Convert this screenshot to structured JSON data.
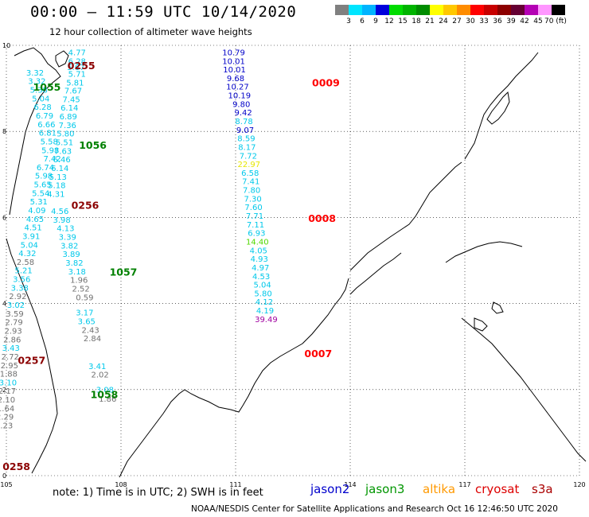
{
  "header": {
    "title": "00:00 – 11:59 UTC 10/14/2020",
    "subtitle": "12 hour collection of altimeter wave heights"
  },
  "colorbar": {
    "labels": [
      "3",
      "6",
      "9",
      "12",
      "15",
      "18",
      "21",
      "24",
      "27",
      "30",
      "33",
      "36",
      "39",
      "42",
      "45",
      "70 (ft)"
    ],
    "colors": [
      "#808080",
      "#00e5ff",
      "#00b4ff",
      "#0000dc",
      "#00dc00",
      "#00b400",
      "#008c00",
      "#ffff00",
      "#ffc800",
      "#ff8c00",
      "#ff0000",
      "#c80000",
      "#8c0000",
      "#660033",
      "#b400b4",
      "#ff96ff",
      "#000000"
    ]
  },
  "legend": {
    "note": "note:  1) Time is in UTC;  2) SWH is in feet",
    "satellites": [
      {
        "name": "jason2",
        "color": "#0000cc"
      },
      {
        "name": "jason3",
        "color": "#009600"
      },
      {
        "name": "altika",
        "color": "#ff9900"
      },
      {
        "name": "cryosat",
        "color": "#dd0000"
      },
      {
        "name": "s3a",
        "color": "#aa0000"
      }
    ]
  },
  "footer": {
    "credit": "NOAA/NESDIS Center for Satellite Applications and Research    Oct 16 12:46:50 UTC 2020"
  },
  "chart_data": {
    "type": "scatter",
    "xlim": [
      105,
      120
    ],
    "ylim": [
      0,
      10
    ],
    "grid": true,
    "x_ticks": [
      "105",
      "108",
      "111",
      "114",
      "117",
      "120"
    ],
    "y_ticks": [
      "0",
      "2",
      "4",
      "6",
      "8",
      "10"
    ],
    "swh_colors": {
      "gray": "#707070",
      "cyan": "#00c8ea",
      "blue": "#0000c8",
      "lgreen": "#50d800",
      "yellow": "#e6e600",
      "purple": "#a000a0"
    },
    "time_labels": [
      {
        "x": 106.6,
        "y": 9.45,
        "text": "0255",
        "color": "#8b0000"
      },
      {
        "x": 105.7,
        "y": 8.95,
        "text": "1055",
        "color": "#008000"
      },
      {
        "x": 113.0,
        "y": 9.05,
        "text": "0009",
        "color": "#ff0000"
      },
      {
        "x": 106.9,
        "y": 7.6,
        "text": "1056",
        "color": "#008000"
      },
      {
        "x": 106.7,
        "y": 6.2,
        "text": "0256",
        "color": "#8b0000"
      },
      {
        "x": 112.9,
        "y": 5.9,
        "text": "0008",
        "color": "#ff0000"
      },
      {
        "x": 107.7,
        "y": 4.65,
        "text": "1057",
        "color": "#008000"
      },
      {
        "x": 105.3,
        "y": 2.6,
        "text": "0257",
        "color": "#8b0000"
      },
      {
        "x": 112.8,
        "y": 2.75,
        "text": "0007",
        "color": "#ff0000"
      },
      {
        "x": 107.2,
        "y": 1.8,
        "text": "1058",
        "color": "#008000"
      },
      {
        "x": 104.9,
        "y": 0.13,
        "text": "0258",
        "color": "#8b0000"
      }
    ],
    "series": [
      {
        "track": "descending",
        "points": [
          {
            "x": 106.85,
            "y": 9.77,
            "v": "4.77",
            "c": "cyan"
          },
          {
            "x": 106.85,
            "y": 9.57,
            "v": "6.28",
            "c": "cyan"
          },
          {
            "x": 106.82,
            "y": 9.43,
            "v": "5.67",
            "c": "cyan"
          },
          {
            "x": 106.85,
            "y": 9.27,
            "v": "5.71",
            "c": "cyan"
          },
          {
            "x": 106.8,
            "y": 9.07,
            "v": "5.81",
            "c": "cyan"
          },
          {
            "x": 106.75,
            "y": 8.88,
            "v": "7.67",
            "c": "cyan"
          },
          {
            "x": 106.7,
            "y": 8.68,
            "v": "7.45",
            "c": "cyan"
          },
          {
            "x": 106.65,
            "y": 8.48,
            "v": "6.14",
            "c": "cyan"
          },
          {
            "x": 106.62,
            "y": 8.28,
            "v": "6.89",
            "c": "cyan"
          },
          {
            "x": 106.6,
            "y": 8.08,
            "v": "7.36",
            "c": "cyan"
          },
          {
            "x": 106.55,
            "y": 7.88,
            "v": "5.80",
            "c": "cyan"
          },
          {
            "x": 106.52,
            "y": 7.68,
            "v": "5.51",
            "c": "cyan"
          },
          {
            "x": 106.48,
            "y": 7.48,
            "v": "7.63",
            "c": "cyan"
          },
          {
            "x": 106.45,
            "y": 7.28,
            "v": "6.46",
            "c": "cyan"
          },
          {
            "x": 106.4,
            "y": 7.08,
            "v": "6.14",
            "c": "cyan"
          },
          {
            "x": 106.35,
            "y": 6.88,
            "v": "5.13",
            "c": "cyan"
          },
          {
            "x": 106.32,
            "y": 6.68,
            "v": "5.18",
            "c": "cyan"
          },
          {
            "x": 106.3,
            "y": 6.48,
            "v": "4.31",
            "c": "cyan"
          },
          {
            "x": 106.4,
            "y": 6.08,
            "v": "4.56",
            "c": "cyan"
          },
          {
            "x": 106.45,
            "y": 5.88,
            "v": "3.98",
            "c": "cyan"
          },
          {
            "x": 106.55,
            "y": 5.68,
            "v": "4.13",
            "c": "cyan"
          },
          {
            "x": 106.6,
            "y": 5.48,
            "v": "3.39",
            "c": "cyan"
          },
          {
            "x": 106.65,
            "y": 5.28,
            "v": "3.82",
            "c": "cyan"
          },
          {
            "x": 106.7,
            "y": 5.08,
            "v": "3.89",
            "c": "cyan"
          },
          {
            "x": 106.78,
            "y": 4.88,
            "v": "3.82",
            "c": "cyan"
          },
          {
            "x": 106.85,
            "y": 4.68,
            "v": "3.18",
            "c": "cyan"
          },
          {
            "x": 106.9,
            "y": 4.48,
            "v": "1.96",
            "c": "gray"
          },
          {
            "x": 106.95,
            "y": 4.28,
            "v": "2.52",
            "c": "gray"
          },
          {
            "x": 107.05,
            "y": 4.08,
            "v": "0.59",
            "c": "gray"
          },
          {
            "x": 107.05,
            "y": 3.72,
            "v": "3.17",
            "c": "cyan"
          },
          {
            "x": 107.1,
            "y": 3.52,
            "v": "3.65",
            "c": "cyan"
          },
          {
            "x": 107.2,
            "y": 3.32,
            "v": "2.43",
            "c": "gray"
          },
          {
            "x": 107.25,
            "y": 3.12,
            "v": "2.84",
            "c": "gray"
          },
          {
            "x": 107.38,
            "y": 2.48,
            "v": "3.41",
            "c": "cyan"
          },
          {
            "x": 107.45,
            "y": 2.28,
            "v": "2.02",
            "c": "gray"
          },
          {
            "x": 107.58,
            "y": 1.93,
            "v": "3.08",
            "c": "cyan"
          },
          {
            "x": 107.65,
            "y": 1.72,
            "v": "1.86",
            "c": "gray"
          }
        ]
      },
      {
        "track": "ascending",
        "points": [
          {
            "x": 105.75,
            "y": 9.3,
            "v": "3.32",
            "c": "cyan"
          },
          {
            "x": 105.8,
            "y": 9.1,
            "v": "3.32",
            "c": "cyan"
          },
          {
            "x": 105.85,
            "y": 8.9,
            "v": "5.38",
            "c": "cyan"
          },
          {
            "x": 105.9,
            "y": 8.7,
            "v": "5.04",
            "c": "cyan"
          },
          {
            "x": 105.95,
            "y": 8.5,
            "v": "6.28",
            "c": "cyan"
          },
          {
            "x": 106.0,
            "y": 8.3,
            "v": "6.79",
            "c": "cyan"
          },
          {
            "x": 106.05,
            "y": 8.1,
            "v": "6.66",
            "c": "cyan"
          },
          {
            "x": 106.08,
            "y": 7.9,
            "v": "6.81",
            "c": "cyan"
          },
          {
            "x": 106.12,
            "y": 7.7,
            "v": "5.58",
            "c": "cyan"
          },
          {
            "x": 106.15,
            "y": 7.5,
            "v": "5.98",
            "c": "cyan"
          },
          {
            "x": 106.2,
            "y": 7.3,
            "v": "7.42",
            "c": "cyan"
          },
          {
            "x": 106.02,
            "y": 7.1,
            "v": "6.74",
            "c": "cyan"
          },
          {
            "x": 105.98,
            "y": 6.9,
            "v": "5.98",
            "c": "cyan"
          },
          {
            "x": 105.95,
            "y": 6.7,
            "v": "5.65",
            "c": "cyan"
          },
          {
            "x": 105.9,
            "y": 6.5,
            "v": "5.54",
            "c": "cyan"
          },
          {
            "x": 105.85,
            "y": 6.3,
            "v": "5.31",
            "c": "cyan"
          },
          {
            "x": 105.8,
            "y": 6.1,
            "v": "4.09",
            "c": "cyan"
          },
          {
            "x": 105.75,
            "y": 5.9,
            "v": "4.65",
            "c": "cyan"
          },
          {
            "x": 105.7,
            "y": 5.7,
            "v": "4.51",
            "c": "cyan"
          },
          {
            "x": 105.65,
            "y": 5.5,
            "v": "3.91",
            "c": "cyan"
          },
          {
            "x": 105.6,
            "y": 5.3,
            "v": "5.04",
            "c": "cyan"
          },
          {
            "x": 105.55,
            "y": 5.1,
            "v": "4.32",
            "c": "cyan"
          },
          {
            "x": 105.5,
            "y": 4.9,
            "v": "2.58",
            "c": "gray"
          },
          {
            "x": 105.45,
            "y": 4.7,
            "v": "5.21",
            "c": "cyan"
          },
          {
            "x": 105.4,
            "y": 4.5,
            "v": "3.56",
            "c": "cyan"
          },
          {
            "x": 105.35,
            "y": 4.3,
            "v": "3.38",
            "c": "cyan"
          },
          {
            "x": 105.3,
            "y": 4.1,
            "v": "2.92",
            "c": "gray"
          },
          {
            "x": 105.25,
            "y": 3.9,
            "v": "3.02",
            "c": "cyan"
          },
          {
            "x": 105.22,
            "y": 3.7,
            "v": "3.59",
            "c": "gray"
          },
          {
            "x": 105.2,
            "y": 3.5,
            "v": "2.79",
            "c": "gray"
          },
          {
            "x": 105.18,
            "y": 3.3,
            "v": "2.93",
            "c": "gray"
          },
          {
            "x": 105.15,
            "y": 3.1,
            "v": "2.86",
            "c": "gray"
          },
          {
            "x": 105.12,
            "y": 2.9,
            "v": "3.43",
            "c": "cyan"
          },
          {
            "x": 105.1,
            "y": 2.7,
            "v": "2.72",
            "c": "gray"
          },
          {
            "x": 105.08,
            "y": 2.5,
            "v": "2.95",
            "c": "gray"
          },
          {
            "x": 105.06,
            "y": 2.3,
            "v": "1.88",
            "c": "gray"
          },
          {
            "x": 105.04,
            "y": 2.1,
            "v": "3.10",
            "c": "cyan"
          },
          {
            "x": 105.02,
            "y": 1.9,
            "v": "2.17",
            "c": "gray"
          },
          {
            "x": 105.0,
            "y": 1.7,
            "v": "2.10",
            "c": "gray"
          },
          {
            "x": 104.98,
            "y": 1.5,
            "v": "1.64",
            "c": "gray"
          },
          {
            "x": 104.96,
            "y": 1.3,
            "v": "2.29",
            "c": "gray"
          },
          {
            "x": 104.94,
            "y": 1.1,
            "v": "2.23",
            "c": "gray"
          }
        ]
      },
      {
        "track": "jason2",
        "points": [
          {
            "x": 110.95,
            "y": 9.77,
            "v": "10.79",
            "c": "blue"
          },
          {
            "x": 110.95,
            "y": 9.57,
            "v": "10.01",
            "c": "blue"
          },
          {
            "x": 110.97,
            "y": 9.37,
            "v": "10.01",
            "c": "blue"
          },
          {
            "x": 111.0,
            "y": 9.17,
            "v": "9.68",
            "c": "blue"
          },
          {
            "x": 111.05,
            "y": 8.97,
            "v": "10.27",
            "c": "blue"
          },
          {
            "x": 111.1,
            "y": 8.77,
            "v": "10.19",
            "c": "blue"
          },
          {
            "x": 111.15,
            "y": 8.57,
            "v": "9.80",
            "c": "blue"
          },
          {
            "x": 111.2,
            "y": 8.37,
            "v": "9.42",
            "c": "blue"
          },
          {
            "x": 111.22,
            "y": 8.17,
            "v": "8.78",
            "c": "cyan"
          },
          {
            "x": 111.25,
            "y": 7.97,
            "v": "9.07",
            "c": "blue"
          },
          {
            "x": 111.28,
            "y": 7.77,
            "v": "8.59",
            "c": "cyan"
          },
          {
            "x": 111.3,
            "y": 7.57,
            "v": "8.17",
            "c": "cyan"
          },
          {
            "x": 111.33,
            "y": 7.37,
            "v": "7.72",
            "c": "cyan"
          },
          {
            "x": 111.35,
            "y": 7.17,
            "v": "22.97",
            "c": "yellow"
          },
          {
            "x": 111.38,
            "y": 6.97,
            "v": "6.58",
            "c": "cyan"
          },
          {
            "x": 111.4,
            "y": 6.77,
            "v": "7.41",
            "c": "cyan"
          },
          {
            "x": 111.42,
            "y": 6.57,
            "v": "7.80",
            "c": "cyan"
          },
          {
            "x": 111.45,
            "y": 6.37,
            "v": "7.30",
            "c": "cyan"
          },
          {
            "x": 111.47,
            "y": 6.17,
            "v": "7.60",
            "c": "cyan"
          },
          {
            "x": 111.5,
            "y": 5.97,
            "v": "7.71",
            "c": "cyan"
          },
          {
            "x": 111.52,
            "y": 5.77,
            "v": "7.11",
            "c": "cyan"
          },
          {
            "x": 111.55,
            "y": 5.57,
            "v": "6.93",
            "c": "cyan"
          },
          {
            "x": 111.57,
            "y": 5.37,
            "v": "14.40",
            "c": "lgreen"
          },
          {
            "x": 111.6,
            "y": 5.17,
            "v": "4.05",
            "c": "cyan"
          },
          {
            "x": 111.62,
            "y": 4.97,
            "v": "4.93",
            "c": "cyan"
          },
          {
            "x": 111.65,
            "y": 4.77,
            "v": "4.97",
            "c": "cyan"
          },
          {
            "x": 111.67,
            "y": 4.57,
            "v": "4.53",
            "c": "cyan"
          },
          {
            "x": 111.7,
            "y": 4.37,
            "v": "5.04",
            "c": "cyan"
          },
          {
            "x": 111.72,
            "y": 4.17,
            "v": "5.80",
            "c": "cyan"
          },
          {
            "x": 111.75,
            "y": 3.97,
            "v": "4.12",
            "c": "cyan"
          },
          {
            "x": 111.77,
            "y": 3.77,
            "v": "4.19",
            "c": "cyan"
          },
          {
            "x": 111.8,
            "y": 3.57,
            "v": "39.49",
            "c": "purple"
          }
        ]
      }
    ]
  }
}
